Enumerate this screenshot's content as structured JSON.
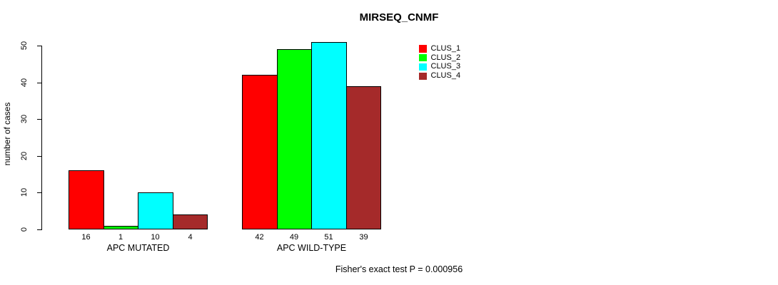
{
  "title": "MIRSEQ_CNMF",
  "footer": "Fisher's exact test P = 0.000956",
  "y_axis": {
    "label": "number of cases"
  },
  "chart_data": {
    "type": "bar",
    "title": "MIRSEQ_CNMF",
    "xlabel": "",
    "ylabel": "number of cases",
    "categories": [
      "APC MUTATED",
      "APC WILD-TYPE"
    ],
    "series": [
      {
        "name": "CLUS_1",
        "color": "#ff0000",
        "values": [
          16,
          42
        ]
      },
      {
        "name": "CLUS_2",
        "color": "#00ff00",
        "values": [
          1,
          49
        ]
      },
      {
        "name": "CLUS_3",
        "color": "#00ffff",
        "values": [
          10,
          51
        ]
      },
      {
        "name": "CLUS_4",
        "color": "#a52a2a",
        "values": [
          4,
          39
        ]
      }
    ],
    "bar_value_labels": [
      [
        16,
        1,
        10,
        4
      ],
      [
        42,
        49,
        51,
        39
      ]
    ],
    "yticks": [
      0,
      10,
      20,
      30,
      40,
      50
    ],
    "ylim": [
      0,
      50
    ],
    "grid": false,
    "legend": [
      "CLUS_1",
      "CLUS_2",
      "CLUS_3",
      "CLUS_4"
    ],
    "legend_position": "top-right",
    "annotation": "Fisher's exact test P = 0.000956"
  }
}
